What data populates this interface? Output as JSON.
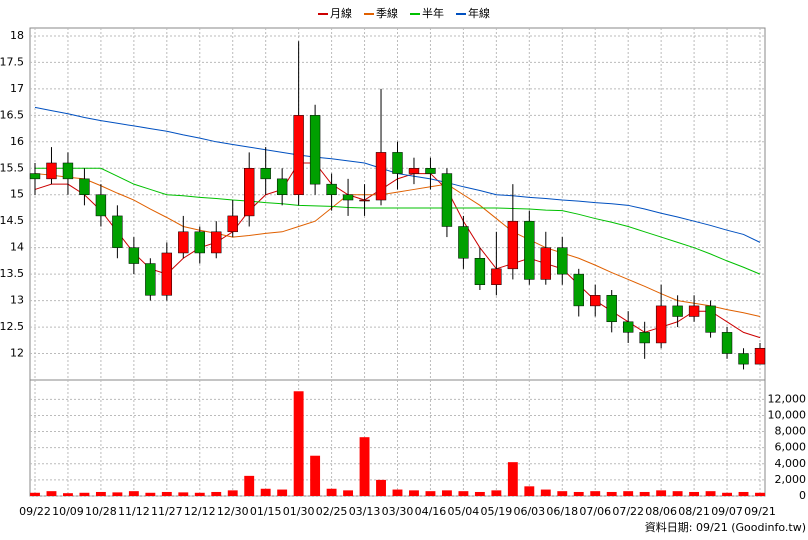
{
  "chart_data": {
    "type": "candlestick",
    "legend": [
      "月線",
      "季線",
      "半年",
      "年線"
    ],
    "categories": [
      "09/22",
      null,
      "10/09",
      null,
      "10/28",
      null,
      "11/12",
      null,
      "11/27",
      null,
      "12/12",
      null,
      "12/30",
      null,
      "01/15",
      null,
      "01/30",
      null,
      "02/25",
      null,
      "03/13",
      null,
      "03/30",
      null,
      "04/16",
      null,
      "05/04",
      null,
      "05/19",
      null,
      "06/03",
      null,
      "06/18",
      null,
      "07/06",
      null,
      "07/22",
      null,
      "08/06",
      null,
      "08/21",
      null,
      "09/07",
      null,
      "09/21"
    ],
    "open": [
      15.4,
      15.3,
      15.6,
      15.3,
      15.0,
      14.6,
      14.0,
      13.7,
      13.1,
      13.9,
      14.3,
      13.9,
      14.3,
      14.6,
      15.5,
      15.3,
      15.0,
      16.5,
      15.2,
      15.0,
      14.9,
      14.9,
      15.8,
      15.4,
      15.5,
      15.4,
      14.4,
      13.8,
      13.3,
      13.6,
      14.5,
      13.4,
      14.0,
      13.5,
      12.9,
      13.1,
      12.6,
      12.4,
      12.2,
      12.9,
      12.7,
      12.9,
      12.4,
      12.0,
      11.8
    ],
    "high": [
      15.6,
      15.9,
      15.8,
      15.5,
      15.2,
      14.8,
      14.2,
      13.8,
      14.1,
      14.6,
      14.4,
      14.5,
      14.9,
      15.8,
      15.9,
      15.5,
      17.9,
      16.7,
      15.4,
      15.3,
      15.2,
      17.0,
      16.0,
      15.7,
      15.7,
      15.5,
      14.6,
      14.0,
      14.3,
      15.2,
      14.7,
      14.3,
      14.2,
      13.6,
      13.3,
      13.2,
      12.8,
      12.6,
      13.3,
      13.1,
      13.1,
      13.0,
      12.5,
      12.1,
      12.2
    ],
    "low": [
      15.0,
      15.2,
      15.0,
      14.8,
      14.4,
      13.8,
      13.5,
      13.0,
      13.0,
      13.8,
      13.7,
      13.8,
      14.2,
      14.4,
      15.0,
      14.8,
      14.8,
      15.0,
      14.7,
      14.6,
      14.6,
      14.8,
      15.1,
      15.2,
      15.1,
      14.2,
      13.6,
      13.2,
      13.1,
      13.4,
      13.3,
      13.3,
      13.3,
      12.7,
      12.7,
      12.4,
      12.2,
      11.9,
      12.1,
      12.5,
      12.6,
      12.3,
      11.9,
      11.7,
      11.8
    ],
    "close": [
      15.3,
      15.6,
      15.3,
      15.0,
      14.6,
      14.0,
      13.7,
      13.1,
      13.9,
      14.3,
      13.9,
      14.3,
      14.6,
      15.5,
      15.3,
      15.0,
      16.5,
      15.2,
      15.0,
      14.9,
      14.9,
      15.8,
      15.4,
      15.5,
      15.4,
      14.4,
      13.8,
      13.3,
      13.6,
      14.5,
      13.4,
      14.0,
      13.5,
      12.9,
      13.1,
      12.6,
      12.4,
      12.2,
      12.9,
      12.7,
      12.9,
      12.4,
      12.0,
      11.8,
      12.1
    ],
    "up_color": "#ff0000",
    "down_color": "#00a000",
    "series": [
      {
        "name": "月線",
        "color": "#cc0000",
        "values": [
          15.1,
          15.2,
          15.2,
          15.0,
          14.7,
          14.3,
          13.9,
          13.6,
          13.5,
          13.8,
          14.0,
          14.1,
          14.3,
          14.7,
          15.0,
          15.1,
          15.6,
          15.6,
          15.2,
          15.0,
          14.9,
          15.1,
          15.3,
          15.4,
          15.4,
          15.1,
          14.5,
          14.0,
          13.6,
          13.7,
          13.8,
          13.7,
          13.6,
          13.3,
          13.0,
          12.8,
          12.6,
          12.4,
          12.5,
          12.6,
          12.8,
          12.8,
          12.6,
          12.4,
          12.3
        ]
      },
      {
        "name": "季線",
        "color": "#e06000",
        "values": [
          15.4,
          15.37,
          15.33,
          15.3,
          15.17,
          15.03,
          14.9,
          14.73,
          14.57,
          14.4,
          14.33,
          14.27,
          14.2,
          14.23,
          14.27,
          14.3,
          14.4,
          14.5,
          14.75,
          15.0,
          15.0,
          15.0,
          15.05,
          15.1,
          15.15,
          15.2,
          15.0,
          14.8,
          14.55,
          14.3,
          14.15,
          14.0,
          13.9,
          13.8,
          13.67,
          13.53,
          13.4,
          13.27,
          13.13,
          13.0,
          12.95,
          12.9,
          12.83,
          12.77,
          12.7
        ]
      },
      {
        "name": "半年",
        "color": "#00c000",
        "values": [
          15.5,
          15.5,
          15.5,
          15.5,
          15.5,
          15.35,
          15.2,
          15.1,
          15.0,
          14.98,
          14.95,
          14.93,
          14.9,
          14.88,
          14.85,
          14.83,
          14.8,
          14.79,
          14.78,
          14.76,
          14.75,
          14.75,
          14.75,
          14.75,
          14.75,
          14.75,
          14.75,
          14.75,
          14.75,
          14.74,
          14.73,
          14.71,
          14.7,
          14.63,
          14.55,
          14.48,
          14.4,
          14.3,
          14.2,
          14.1,
          14.0,
          13.88,
          13.75,
          13.63,
          13.5
        ]
      },
      {
        "name": "年線",
        "color": "#0050c0",
        "values": [
          16.65,
          16.59,
          16.53,
          16.46,
          16.4,
          16.35,
          16.3,
          16.25,
          16.2,
          16.13,
          16.07,
          16.0,
          15.95,
          15.9,
          15.85,
          15.8,
          15.75,
          15.71,
          15.68,
          15.64,
          15.6,
          15.5,
          15.4,
          15.35,
          15.3,
          15.23,
          15.15,
          15.08,
          15.0,
          14.98,
          14.95,
          14.93,
          14.9,
          14.88,
          14.85,
          14.83,
          14.8,
          14.73,
          14.65,
          14.58,
          14.5,
          14.42,
          14.33,
          14.25,
          14.1
        ]
      }
    ],
    "ylim": [
      11.5,
      18.15
    ],
    "yticks": [
      12,
      12.5,
      13,
      13.5,
      14,
      14.5,
      15,
      15.5,
      16,
      16.5,
      17,
      17.5,
      18
    ],
    "volume": {
      "color": "#ff0000",
      "values": [
        400,
        600,
        350,
        400,
        500,
        450,
        600,
        400,
        500,
        450,
        400,
        500,
        700,
        2500,
        900,
        800,
        13000,
        5000,
        900,
        700,
        7300,
        2000,
        800,
        700,
        600,
        700,
        600,
        500,
        700,
        4200,
        1200,
        800,
        600,
        500,
        600,
        500,
        600,
        500,
        700,
        600,
        500,
        600,
        400,
        500,
        400
      ],
      "ylim": [
        0,
        14400
      ],
      "yticks": [
        {
          "value": 0,
          "label": "0"
        },
        {
          "value": 2000,
          "label": "2,000"
        },
        {
          "value": 4000,
          "label": "4,000"
        },
        {
          "value": 6000,
          "label": "6,000"
        },
        {
          "value": 8000,
          "label": "8,000"
        },
        {
          "value": 10000,
          "label": "10,000"
        },
        {
          "value": 12000,
          "label": "12,000"
        }
      ]
    },
    "grid": true,
    "footer": "資料日期: 09/21 (Goodinfo.tw)"
  }
}
